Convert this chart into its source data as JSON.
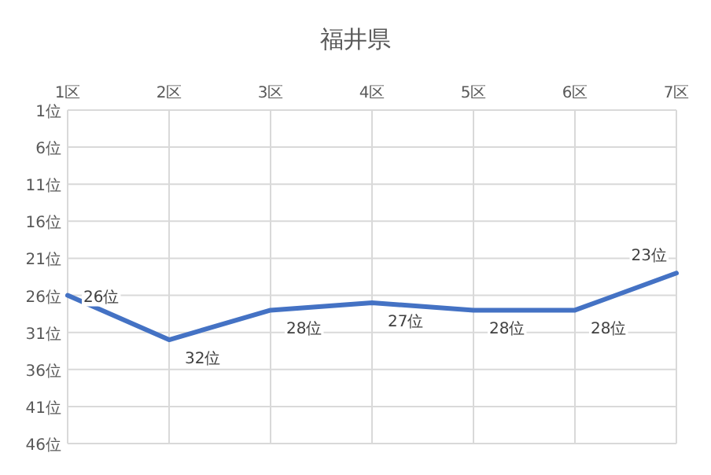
{
  "chart_data": {
    "type": "line",
    "title": "福井県",
    "categories": [
      "1区",
      "2区",
      "3区",
      "4区",
      "5区",
      "6区",
      "7区"
    ],
    "series": [
      {
        "color": "#4472c4",
        "values": [
          26,
          32,
          28,
          27,
          28,
          28,
          23
        ],
        "value_labels": [
          "26位",
          "32位",
          "28位",
          "27位",
          "28位",
          "28位",
          "23位"
        ]
      }
    ],
    "ylim": [
      46,
      1
    ],
    "yticks": [
      {
        "value": 1,
        "label": "1位"
      },
      {
        "value": 6,
        "label": "6位"
      },
      {
        "value": 11,
        "label": "11位"
      },
      {
        "value": 16,
        "label": "16位"
      },
      {
        "value": 21,
        "label": "21位"
      },
      {
        "value": 26,
        "label": "26位"
      },
      {
        "value": 31,
        "label": "31位"
      },
      {
        "value": 36,
        "label": "36位"
      },
      {
        "value": 41,
        "label": "41位"
      },
      {
        "value": 46,
        "label": "46位"
      }
    ],
    "grid": true,
    "marker": "none",
    "line_style": "solid"
  }
}
